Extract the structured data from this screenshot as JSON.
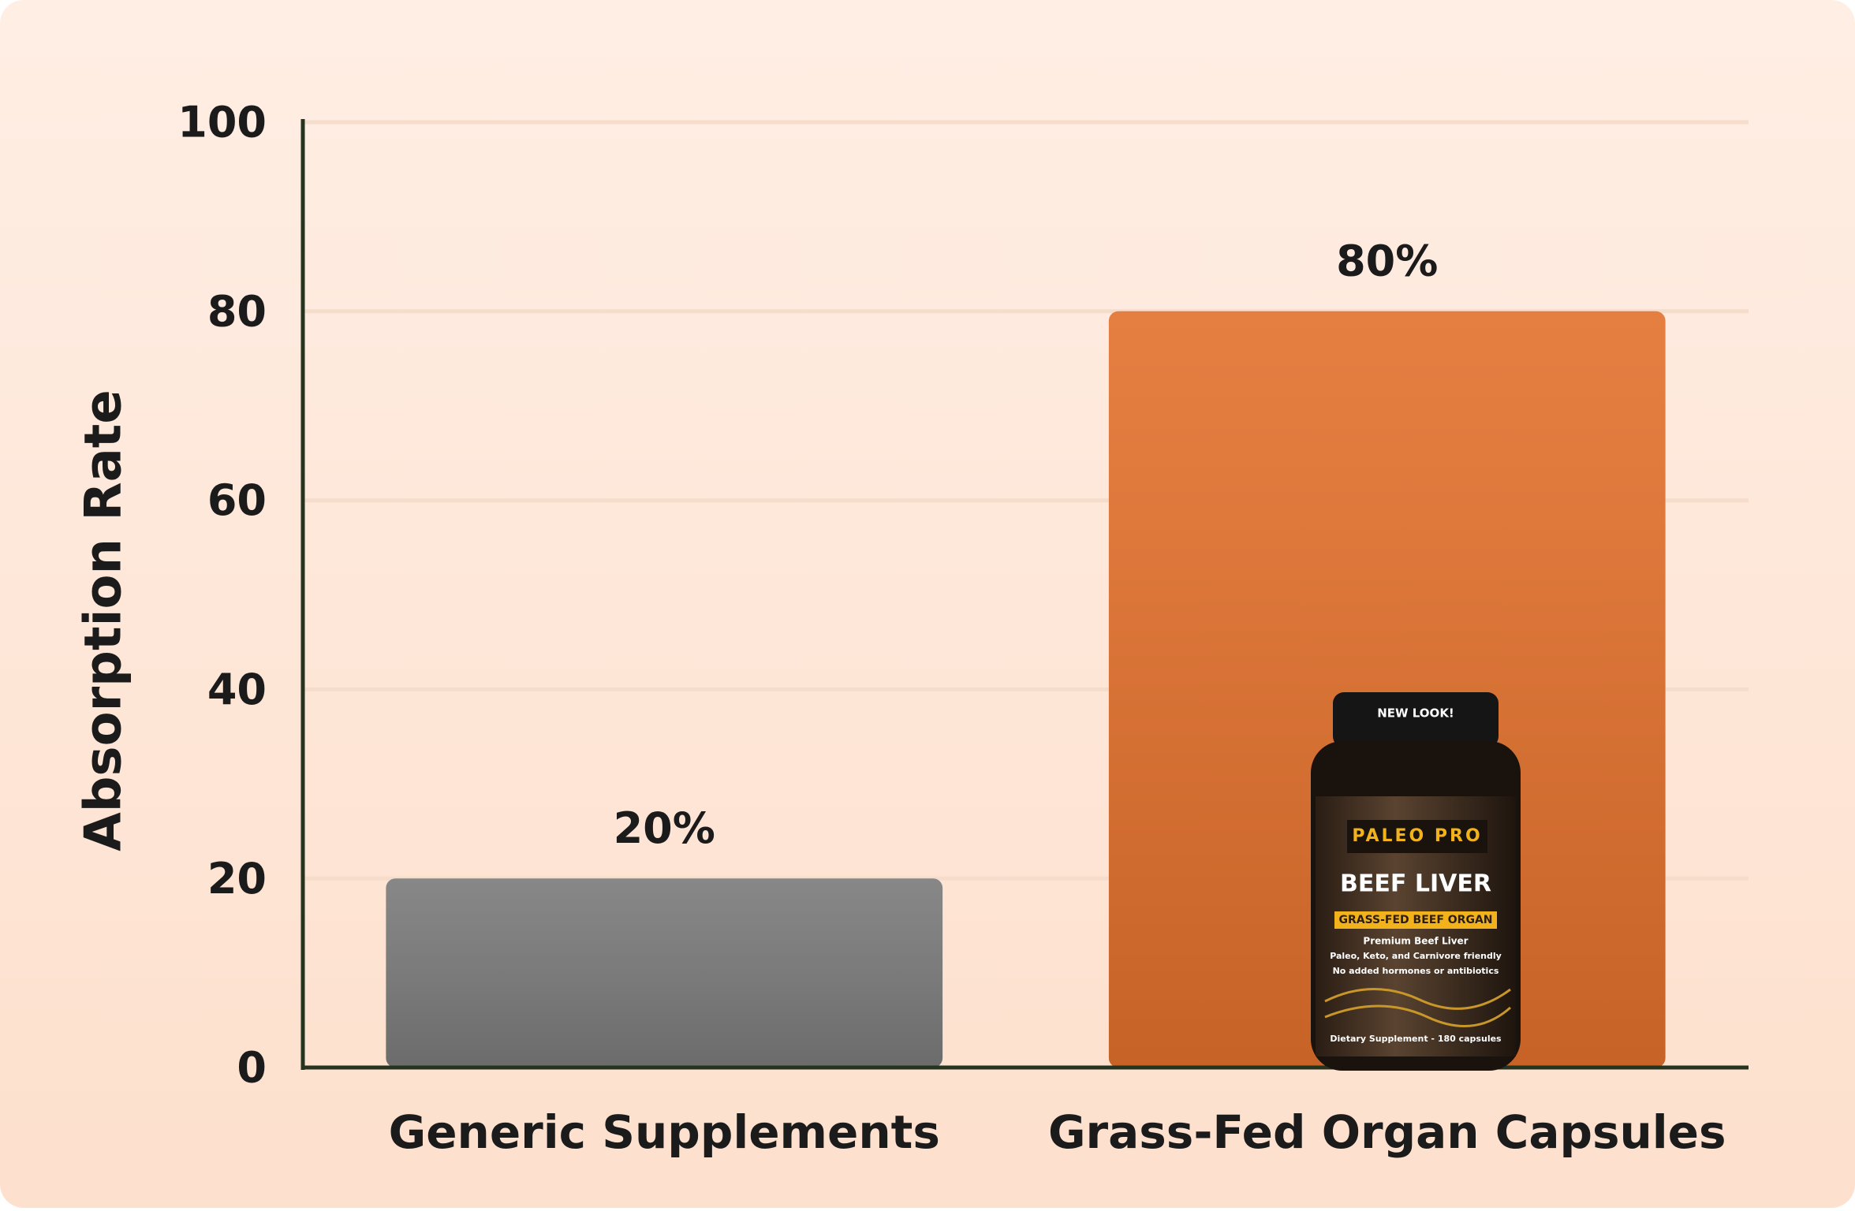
{
  "chart_data": {
    "type": "bar",
    "y_label": "Absorption Rate",
    "categories": [
      "Generic Supplements",
      "Grass-Fed Organ Capsules"
    ],
    "values": [
      20,
      80
    ],
    "value_labels": [
      "20%",
      "80%"
    ],
    "colors": [
      "#7a7a7a",
      "#e2702c"
    ],
    "ylim": [
      0,
      100
    ],
    "yticks": [
      0,
      20,
      40,
      60,
      80,
      100
    ],
    "grid": true
  },
  "product_label": {
    "badge": "NEW LOOK!",
    "brand": "PALEO PRO",
    "name": "BEEF LIVER",
    "tag": "GRASS-FED BEEF ORGAN",
    "lines": [
      "Premium Beef Liver",
      "Paleo, Keto, and Carnivore friendly",
      "No added hormones or antibiotics"
    ],
    "footer": "Dietary Supplement - 180 capsules"
  }
}
